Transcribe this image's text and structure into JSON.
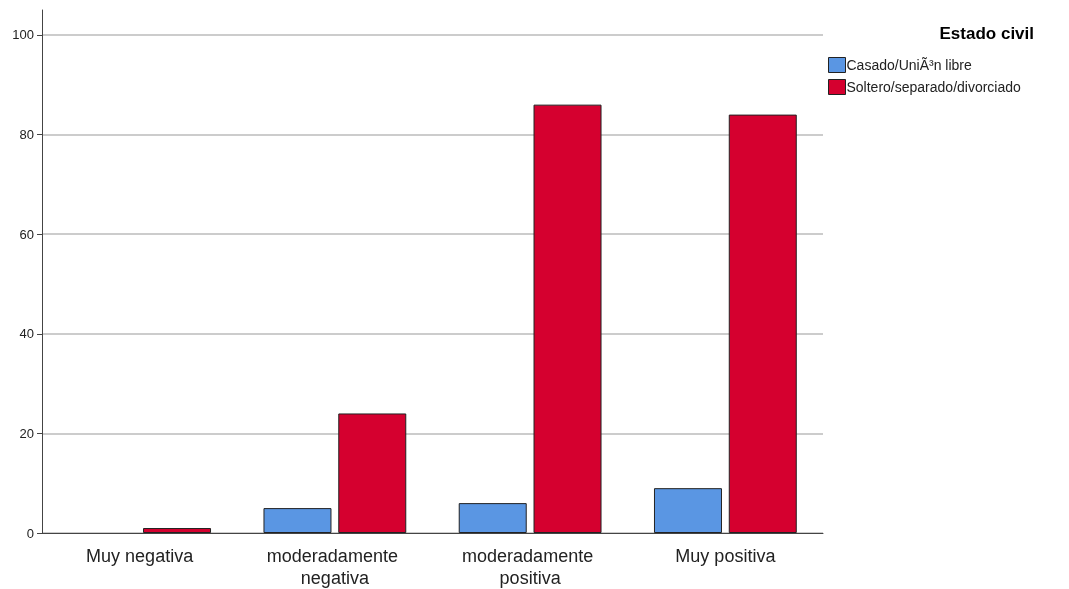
{
  "chart_data": {
    "type": "bar",
    "legend_title": "Estado civil",
    "categories": [
      "Muy negativa",
      "moderadamente negativa",
      "moderadamente positiva",
      "Muy positiva"
    ],
    "series": [
      {
        "name": "Casado/UniÃ³n libre",
        "color": "#5a96e3",
        "values": [
          0,
          5,
          6,
          9
        ]
      },
      {
        "name": "Soltero/separado/divorciado",
        "color": "#d5002f",
        "values": [
          1,
          24,
          86,
          84
        ]
      }
    ],
    "ylim": [
      0,
      105
    ],
    "yticks": [
      0,
      20,
      40,
      60,
      80,
      100
    ],
    "grid": "y",
    "legend": "top right"
  }
}
